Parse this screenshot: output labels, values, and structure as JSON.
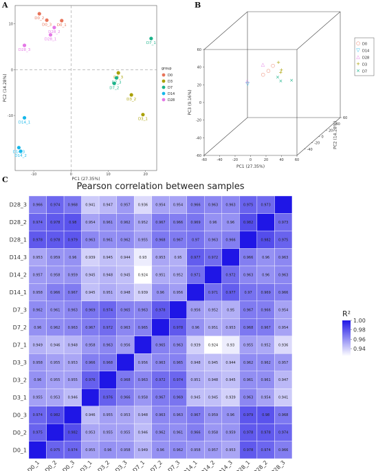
{
  "panels": {
    "a": "A",
    "b": "B",
    "c": "C"
  },
  "colors": {
    "D0": "#e8745a",
    "D3": "#a9a000",
    "D7": "#1bb38a",
    "D14": "#16b7ea",
    "D28": "#e478e6"
  },
  "chart_data": [
    {
      "type": "scatter",
      "xlabel": "PC1 (27.35%)",
      "ylabel": "PC2 (14.28%)",
      "xlim": [
        -15,
        23
      ],
      "ylim": [
        -22,
        14
      ],
      "xticks": [
        -10,
        0,
        10,
        20
      ],
      "yticks": [
        10,
        0,
        -10
      ],
      "legend": {
        "title": "group",
        "position": "right",
        "entries": [
          "D0",
          "D3",
          "D7",
          "D14",
          "D28"
        ]
      },
      "points": [
        {
          "label": "D0_2",
          "group": "D0",
          "x": -8.5,
          "y": 12.2
        },
        {
          "label": "D0_3",
          "group": "D0",
          "x": -6.5,
          "y": 10.8
        },
        {
          "label": "D0_1",
          "group": "D0",
          "x": -2.5,
          "y": 10.7
        },
        {
          "label": "D28_2",
          "group": "D28",
          "x": -4.5,
          "y": 9.2
        },
        {
          "label": "D28_1",
          "group": "D28",
          "x": -5.5,
          "y": 7.6
        },
        {
          "label": "D28_3",
          "group": "D28",
          "x": -12.5,
          "y": 5.3
        },
        {
          "label": "D7_1",
          "group": "D7",
          "x": 21.5,
          "y": 6.8
        },
        {
          "label": "D3_3",
          "group": "D3",
          "x": 12.7,
          "y": -0.7
        },
        {
          "label": "D7_3",
          "group": "D7",
          "x": 12.2,
          "y": -1.8
        },
        {
          "label": "D7_2",
          "group": "D7",
          "x": 11.6,
          "y": -3.0
        },
        {
          "label": "D3_2",
          "group": "D3",
          "x": 16.2,
          "y": -5.5
        },
        {
          "label": "D3_1",
          "group": "D3",
          "x": 19.3,
          "y": -9.8
        },
        {
          "label": "D14_1",
          "group": "D14",
          "x": -12.5,
          "y": -10.5
        },
        {
          "label": "D14_3",
          "group": "D14",
          "x": -14.0,
          "y": -17.0
        },
        {
          "label": "D14_2",
          "group": "D14",
          "x": -13.5,
          "y": -17.8
        }
      ]
    },
    {
      "type": "scatter",
      "subtype": "3d",
      "xlabel": "PC1 (27.35%)",
      "ylabel": "PC2 (14.28%)",
      "zlabel": "PC3 (9.16%)",
      "xticks": [
        -60,
        -40,
        -20,
        0,
        20,
        40,
        60
      ],
      "yticks": [
        -40,
        -20,
        0,
        20,
        40,
        60
      ],
      "zticks": [
        60,
        40,
        20,
        0,
        -20,
        -40,
        -60
      ],
      "legend": {
        "position": "right",
        "entries": [
          {
            "name": "D0",
            "marker": "○"
          },
          {
            "name": "D14",
            "marker": "▽"
          },
          {
            "name": "D28",
            "marker": "△"
          },
          {
            "name": "D3",
            "marker": "+"
          },
          {
            "name": "D7",
            "marker": "×"
          }
        ]
      },
      "points": [
        {
          "group": "D28",
          "x": -12,
          "y": 0,
          "z": 22
        },
        {
          "group": "D28",
          "x": -30,
          "y": -5,
          "z": 5
        },
        {
          "group": "D14",
          "x": -28,
          "y": -8,
          "z": 3
        },
        {
          "group": "D0",
          "x": -5,
          "y": 0,
          "z": 15
        },
        {
          "group": "D0",
          "x": -10,
          "y": -4,
          "z": 12
        },
        {
          "group": "D0",
          "x": 0,
          "y": 2,
          "z": 20
        },
        {
          "group": "D3",
          "x": 8,
          "y": 0,
          "z": 24
        },
        {
          "group": "D3",
          "x": 10,
          "y": 4,
          "z": 14
        },
        {
          "group": "D3",
          "x": 10,
          "y": 2,
          "z": 12
        },
        {
          "group": "D7",
          "x": 8,
          "y": -2,
          "z": 8
        },
        {
          "group": "D7",
          "x": 12,
          "y": -2,
          "z": 4
        },
        {
          "group": "D7",
          "x": 25,
          "y": 0,
          "z": 4
        }
      ]
    },
    {
      "type": "heatmap",
      "title": "Pearson correlation between samples",
      "labels": [
        "D0_1",
        "D0_2",
        "D0_3",
        "D3_1",
        "D3_2",
        "D3_3",
        "D7_1",
        "D7_2",
        "D7_3",
        "D14_1",
        "D14_2",
        "D14_3",
        "D28_1",
        "D28_2",
        "D28_3"
      ],
      "matrix": [
        [
          1,
          0.975,
          0.974,
          0.955,
          0.96,
          0.958,
          0.949,
          0.96,
          0.962,
          0.958,
          0.957,
          0.953,
          0.978,
          0.974,
          0.966
        ],
        [
          0.975,
          1,
          0.982,
          0.953,
          0.955,
          0.955,
          0.946,
          0.962,
          0.961,
          0.966,
          0.958,
          0.959,
          0.978,
          0.978,
          0.974
        ],
        [
          0.974,
          0.982,
          1,
          0.946,
          0.955,
          0.953,
          0.948,
          0.963,
          0.963,
          0.967,
          0.959,
          0.96,
          0.979,
          0.98,
          0.968
        ],
        [
          0.955,
          0.953,
          0.946,
          1,
          0.976,
          0.966,
          0.958,
          0.967,
          0.969,
          0.945,
          0.945,
          0.939,
          0.963,
          0.954,
          0.941
        ],
        [
          0.96,
          0.955,
          0.955,
          0.976,
          1,
          0.968,
          0.963,
          0.972,
          0.974,
          0.951,
          0.948,
          0.945,
          0.961,
          0.961,
          0.947
        ],
        [
          0.958,
          0.955,
          0.953,
          0.966,
          0.968,
          1,
          0.956,
          0.963,
          0.965,
          0.948,
          0.945,
          0.944,
          0.962,
          0.962,
          0.957
        ],
        [
          0.949,
          0.946,
          0.948,
          0.958,
          0.963,
          0.956,
          1,
          0.965,
          0.963,
          0.939,
          0.924,
          0.93,
          0.955,
          0.952,
          0.936
        ],
        [
          0.96,
          0.962,
          0.963,
          0.967,
          0.972,
          0.963,
          0.965,
          1,
          0.978,
          0.96,
          0.951,
          0.953,
          0.968,
          0.967,
          0.954
        ],
        [
          0.962,
          0.961,
          0.963,
          0.969,
          0.974,
          0.965,
          0.963,
          0.978,
          1,
          0.956,
          0.952,
          0.95,
          0.967,
          0.966,
          0.954
        ],
        [
          0.958,
          0.966,
          0.967,
          0.945,
          0.951,
          0.948,
          0.939,
          0.96,
          0.956,
          1,
          0.971,
          0.977,
          0.97,
          0.969,
          0.966
        ],
        [
          0.957,
          0.958,
          0.959,
          0.945,
          0.948,
          0.945,
          0.924,
          0.951,
          0.952,
          0.971,
          1,
          0.972,
          0.963,
          0.96,
          0.963
        ],
        [
          0.953,
          0.959,
          0.96,
          0.939,
          0.945,
          0.944,
          0.93,
          0.953,
          0.95,
          0.977,
          0.972,
          1,
          0.966,
          0.96,
          0.963
        ],
        [
          0.978,
          0.978,
          0.979,
          0.963,
          0.961,
          0.962,
          0.955,
          0.968,
          0.967,
          0.97,
          0.963,
          0.966,
          1,
          0.982,
          0.975
        ],
        [
          0.974,
          0.978,
          0.98,
          0.954,
          0.961,
          0.962,
          0.952,
          0.967,
          0.966,
          0.969,
          0.96,
          0.96,
          0.982,
          1,
          0.973
        ],
        [
          0.966,
          0.974,
          0.968,
          0.941,
          0.947,
          0.957,
          0.936,
          0.954,
          0.954,
          0.966,
          0.963,
          0.963,
          0.975,
          0.973,
          1
        ]
      ],
      "colorbar": {
        "title": "R²",
        "ticks": [
          "1.00",
          "0.98",
          "0.96",
          "0.94"
        ],
        "range": [
          0.924,
          1.0
        ]
      }
    }
  ]
}
